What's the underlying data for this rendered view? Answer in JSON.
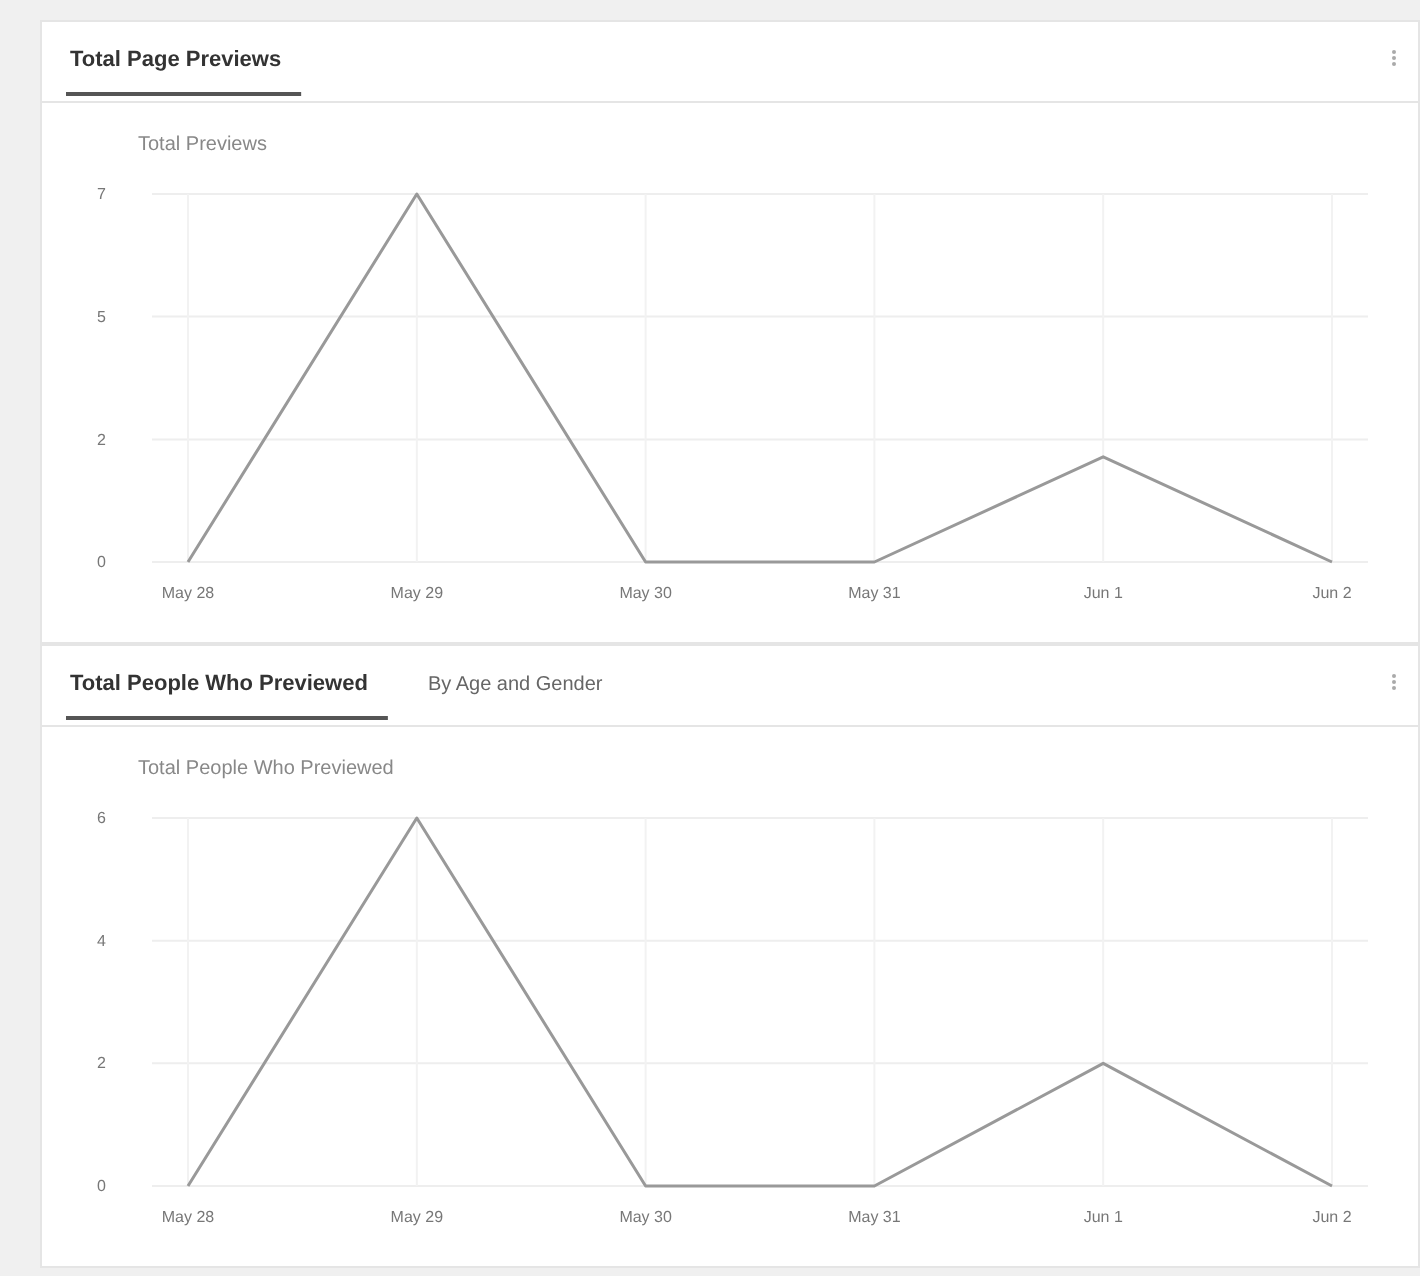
{
  "chart_data": [
    {
      "type": "line",
      "title": "Total Page Previews",
      "subtitle": "Total Previews",
      "categories": [
        "May 28",
        "May 29",
        "May 30",
        "May 31",
        "Jun 1",
        "Jun 2"
      ],
      "series": [
        {
          "color": "#999999",
          "values": [
            0,
            7,
            0,
            0,
            2,
            0
          ]
        }
      ],
      "ylim": [
        0,
        7
      ],
      "yticks": [
        0,
        {
          "value": 2.33,
          "label": "2"
        },
        {
          "value": 4.67,
          "label": "5"
        },
        7
      ],
      "grid": true,
      "marker": "none",
      "line_style": "solid"
    },
    {
      "type": "line",
      "title": "Total People Who Previewed",
      "subtitle": "Total People Who Previewed",
      "annotations": [
        "By Age and Gender"
      ],
      "categories": [
        "May 28",
        "May 29",
        "May 30",
        "May 31",
        "Jun 1",
        "Jun 2"
      ],
      "series": [
        {
          "color": "#999999",
          "values": [
            0,
            6,
            0,
            0,
            2,
            0
          ]
        }
      ],
      "ylim": [
        0,
        6
      ],
      "yticks": [
        0,
        2,
        4,
        6
      ],
      "grid": true,
      "marker": "none",
      "line_style": "solid"
    }
  ]
}
